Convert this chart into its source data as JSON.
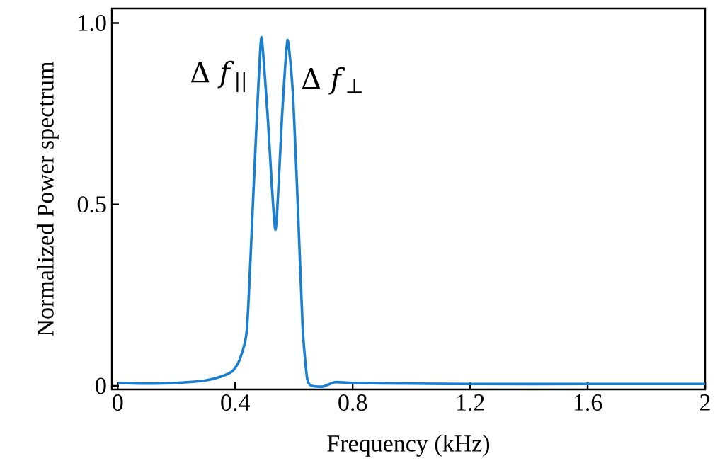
{
  "chart_data": {
    "type": "line",
    "xlabel": "Frequency (kHz)",
    "ylabel": "Normalized Power spectrum",
    "x": [
      0,
      0.1,
      0.2,
      0.3,
      0.35,
      0.39,
      0.414,
      0.44,
      0.463,
      0.479,
      0.49,
      0.51,
      0.537,
      0.56,
      0.578,
      0.597,
      0.614,
      0.63,
      0.645,
      0.66,
      0.7,
      0.74,
      0.8,
      1.0,
      1.2,
      1.6,
      2.0
    ],
    "series": [
      {
        "color": "#1a7fd0",
        "values": [
          0.008,
          0.006,
          0.008,
          0.015,
          0.025,
          0.04,
          0.07,
          0.156,
          0.55,
          0.83,
          0.96,
          0.75,
          0.43,
          0.75,
          0.953,
          0.8,
          0.48,
          0.156,
          0.02,
          0.0,
          -0.002,
          0.01,
          0.008,
          0.006,
          0.005,
          0.005,
          0.005
        ]
      }
    ],
    "xlim": [
      -0.02,
      2
    ],
    "ylim": [
      -0.01,
      1.04
    ],
    "xticks": [
      0,
      0.4,
      0.8,
      1.2,
      1.6,
      2
    ],
    "yticks": [
      0,
      0.5,
      {
        "value": 1,
        "label": "1.0"
      }
    ],
    "annotations": [
      {
        "text": "Δ *f*$_{||}$",
        "x": 0.49,
        "y": 0.96
      },
      {
        "text": "Δ *f*$_{⊥}$",
        "x": 0.578,
        "y": 0.953
      }
    ],
    "grid": false,
    "marker": "none",
    "line_style": "solid"
  }
}
